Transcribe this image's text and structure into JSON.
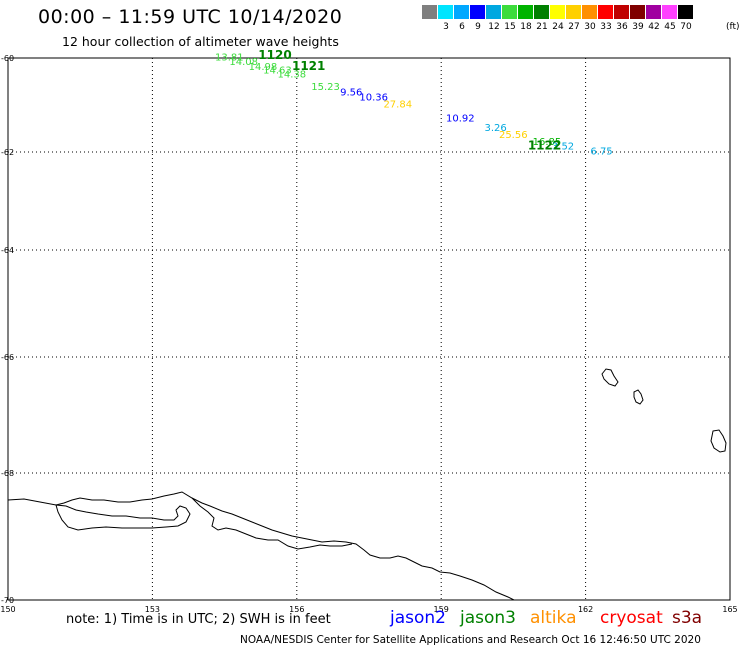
{
  "title": "00:00 – 11:59 UTC 10/14/2020",
  "subtitle": "12 hour collection of altimeter wave heights",
  "legend": {
    "unit": "(ft)",
    "bins": [
      {
        "label": "",
        "color": "#7f7f7f"
      },
      {
        "label": "3",
        "color": "#00e5ff"
      },
      {
        "label": "6",
        "color": "#00a8ff"
      },
      {
        "label": "9",
        "color": "#0000ff"
      },
      {
        "label": "12",
        "color": "#00a8e0"
      },
      {
        "label": "15",
        "color": "#3cdc3c"
      },
      {
        "label": "18",
        "color": "#00b400"
      },
      {
        "label": "21",
        "color": "#008000"
      },
      {
        "label": "24",
        "color": "#ffff00"
      },
      {
        "label": "27",
        "color": "#ffd000"
      },
      {
        "label": "30",
        "color": "#ff9000"
      },
      {
        "label": "33",
        "color": "#ff0000"
      },
      {
        "label": "36",
        "color": "#c00000"
      },
      {
        "label": "39",
        "color": "#800000"
      },
      {
        "label": "42",
        "color": "#a000a0"
      },
      {
        "label": "45",
        "color": "#ff40ff"
      },
      {
        "label": "70",
        "color": "#000000"
      }
    ]
  },
  "map": {
    "lon_range": [
      150,
      165
    ],
    "lat_range": [
      -60,
      -70
    ],
    "lon_ticks": [
      "150",
      "153",
      "156",
      "159",
      "162",
      "165"
    ],
    "lat_ticks": [
      "-60",
      "-62",
      "-64",
      "-66",
      "-68",
      "-70"
    ],
    "grid": true,
    "track_times": [
      {
        "text": "1120",
        "lon": 155.2,
        "lat": -60.02,
        "color": "#008000"
      },
      {
        "text": "1121",
        "lon": 155.9,
        "lat": -60.25,
        "color": "#008000"
      },
      {
        "text": "1122",
        "lon": 160.8,
        "lat": -61.95,
        "color": "#008000"
      }
    ],
    "swh": [
      {
        "text": "13.81",
        "lon": 154.3,
        "lat": -60.05,
        "color": "#3cdc3c"
      },
      {
        "text": "14.08",
        "lon": 154.6,
        "lat": -60.15,
        "color": "#3cdc3c"
      },
      {
        "text": "14.98",
        "lon": 155.0,
        "lat": -60.25,
        "color": "#3cdc3c"
      },
      {
        "text": "14.63",
        "lon": 155.3,
        "lat": -60.33,
        "color": "#3cdc3c"
      },
      {
        "text": "14.38",
        "lon": 155.6,
        "lat": -60.42,
        "color": "#3cdc3c"
      },
      {
        "text": "15.23",
        "lon": 156.3,
        "lat": -60.68,
        "color": "#3cdc3c"
      },
      {
        "text": "9.56",
        "lon": 156.9,
        "lat": -60.8,
        "color": "#0000ff"
      },
      {
        "text": "10.36",
        "lon": 157.3,
        "lat": -60.9,
        "color": "#0000ff"
      },
      {
        "text": "27.84",
        "lon": 157.8,
        "lat": -61.05,
        "color": "#ffd000"
      },
      {
        "text": "10.92",
        "lon": 159.1,
        "lat": -61.35,
        "color": "#0000ff"
      },
      {
        "text": "3.26",
        "lon": 159.9,
        "lat": -61.55,
        "color": "#00a8e0"
      },
      {
        "text": "25.56",
        "lon": 160.2,
        "lat": -61.7,
        "color": "#ffd000"
      },
      {
        "text": "16.85",
        "lon": 160.9,
        "lat": -61.85,
        "color": "#00b400"
      },
      {
        "text": "3.52",
        "lon": 161.3,
        "lat": -61.95,
        "color": "#00a8e0"
      },
      {
        "text": "6.75",
        "lon": 162.1,
        "lat": -62.05,
        "color": "#00a8e0"
      }
    ]
  },
  "note": "note: 1) Time is in UTC; 2) SWH is in feet",
  "satellites": [
    {
      "name": "jason2",
      "color": "#0000ff"
    },
    {
      "name": "jason3",
      "color": "#008000"
    },
    {
      "name": "altika",
      "color": "#ff9000"
    },
    {
      "name": "cryosat",
      "color": "#ff0000"
    },
    {
      "name": "s3a",
      "color": "#800000"
    }
  ],
  "credit": "NOAA/NESDIS Center for Satellite Applications and Research   Oct 16 12:46:50 UTC 2020"
}
